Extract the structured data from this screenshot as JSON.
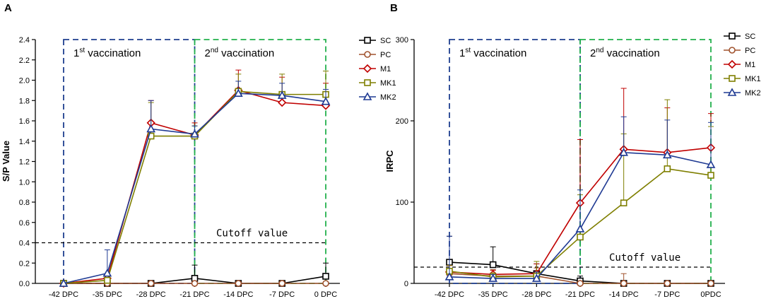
{
  "chart_data": [
    {
      "panel": "A",
      "type": "line",
      "ylabel": "S/P Value",
      "ylim": [
        0,
        2.4
      ],
      "yticks": [
        "0.0",
        "0.2",
        "0.4",
        "0.6",
        "0.8",
        "1.0",
        "1.2",
        "1.4",
        "1.6",
        "1.8",
        "2.0",
        "2.2",
        "2.4"
      ],
      "categories": [
        "-42 DPC",
        "-35 DPC",
        "-28 DPC",
        "-21 DPC",
        "-14 DPC",
        "-7 DPC",
        "0 DPC"
      ],
      "regions": [
        {
          "text_main": "1",
          "text_sup": "st",
          "text_rest": " vaccination",
          "start": 0,
          "end": 3,
          "color": "#1f3f8f"
        },
        {
          "text_main": "2",
          "text_sup": "nd",
          "text_rest": " vaccination",
          "start": 3,
          "end": 6,
          "color": "#22b14c"
        }
      ],
      "cutoff": {
        "label": "Cutoff value",
        "value": 0.4
      },
      "series": [
        {
          "name": "SC",
          "color": "#000000",
          "marker": "square",
          "values": [
            0,
            0,
            0,
            0.05,
            0,
            0,
            0.07
          ],
          "errors": [
            0,
            0,
            0,
            0.13,
            0,
            0,
            0.13
          ]
        },
        {
          "name": "PC",
          "color": "#a0522d",
          "marker": "circle",
          "values": [
            0,
            0,
            0,
            0,
            0,
            0,
            0
          ],
          "errors": [
            0,
            0,
            0,
            0,
            0,
            0,
            0
          ]
        },
        {
          "name": "M1",
          "color": "#c00000",
          "marker": "diamond",
          "values": [
            0,
            0.05,
            1.58,
            1.46,
            1.9,
            1.78,
            1.75
          ],
          "errors": [
            0,
            0.03,
            0.22,
            0.12,
            0.2,
            0.25,
            0.22
          ]
        },
        {
          "name": "MK1",
          "color": "#7f7f00",
          "marker": "square",
          "values": [
            0,
            0.03,
            1.45,
            1.45,
            1.89,
            1.86,
            1.86
          ],
          "errors": [
            0,
            0.02,
            0.33,
            0.1,
            0.17,
            0.2,
            0.23
          ]
        },
        {
          "name": "MK2",
          "color": "#1f3a93",
          "marker": "triangle",
          "values": [
            0,
            0.1,
            1.52,
            1.47,
            1.87,
            1.85,
            1.79
          ],
          "errors": [
            0,
            0.23,
            0.28,
            0.08,
            0.12,
            0.12,
            0.12
          ]
        }
      ]
    },
    {
      "panel": "B",
      "type": "line",
      "ylabel": "IRPC",
      "ylim": [
        0,
        300
      ],
      "yticks": [
        "0",
        "100",
        "200",
        "300"
      ],
      "categories": [
        "-42 DPC",
        "-35 DPC",
        "-28 DPC",
        "-21 DPC",
        "-14 DPC",
        "-7 DPC",
        "0PDC"
      ],
      "regions": [
        {
          "text_main": "1",
          "text_sup": "st",
          "text_rest": " vaccination",
          "start": 0,
          "end": 3,
          "color": "#1f3f8f"
        },
        {
          "text_main": "2",
          "text_sup": "nd",
          "text_rest": " vaccination",
          "start": 3,
          "end": 6,
          "color": "#22b14c"
        }
      ],
      "cutoff": {
        "label": "Cutoff value",
        "value": 20
      },
      "series": [
        {
          "name": "SC",
          "color": "#000000",
          "marker": "square",
          "values": [
            26,
            23,
            12,
            3,
            0,
            0,
            0
          ],
          "errors": [
            32,
            22,
            12,
            6,
            0,
            0,
            0
          ]
        },
        {
          "name": "PC",
          "color": "#a0522d",
          "marker": "circle",
          "values": [
            12,
            9,
            9,
            0,
            0,
            0,
            0
          ],
          "errors": [
            10,
            8,
            10,
            0,
            12,
            0,
            0
          ]
        },
        {
          "name": "M1",
          "color": "#c00000",
          "marker": "diamond",
          "values": [
            14,
            11,
            12,
            99,
            165,
            161,
            167
          ],
          "errors": [
            8,
            5,
            12,
            78,
            75,
            55,
            42
          ]
        },
        {
          "name": "MK1",
          "color": "#7f7f00",
          "marker": "square",
          "values": [
            15,
            8,
            9,
            57,
            99,
            141,
            133
          ],
          "errors": [
            7,
            5,
            18,
            52,
            85,
            85,
            60
          ]
        },
        {
          "name": "MK2",
          "color": "#1f3a93",
          "marker": "triangle",
          "values": [
            8,
            6,
            6,
            67,
            161,
            158,
            146
          ],
          "errors": [
            50,
            5,
            8,
            48,
            44,
            43,
            52
          ]
        }
      ]
    }
  ]
}
